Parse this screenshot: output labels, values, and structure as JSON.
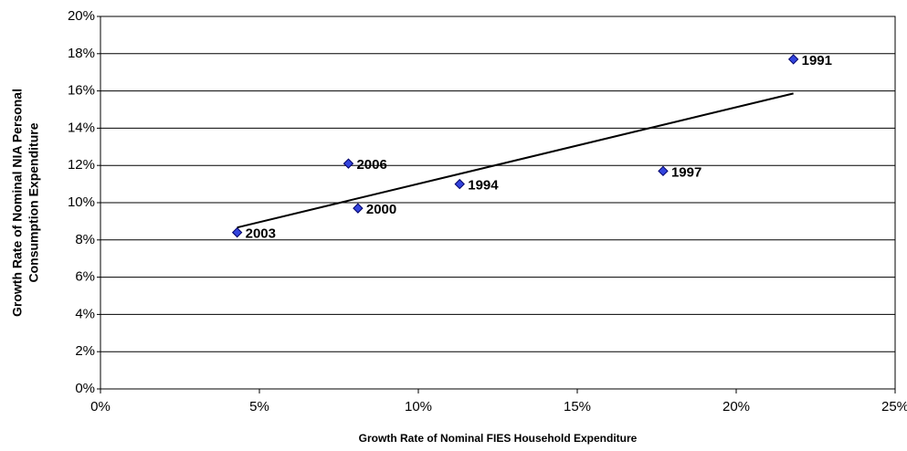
{
  "chart_data": {
    "type": "scatter",
    "xlabel": "Growth Rate of Nominal FIES Household Expenditure",
    "ylabel": [
      "Growth Rate of Nominal NIA Personal",
      "Consumption Expenditure"
    ],
    "series": [
      {
        "color": "#3344dd",
        "x": [
          21.8,
          17.7,
          11.3,
          7.8,
          8.1,
          4.3
        ],
        "values": [
          17.7,
          11.7,
          11.0,
          12.1,
          9.7,
          8.4
        ],
        "labels": [
          "1991",
          "1997",
          "1994",
          "2006",
          "2000",
          "2003"
        ]
      }
    ],
    "trendline": "linear",
    "trendline_color": "#000000",
    "xlim": [
      0,
      25
    ],
    "xticks": [
      {
        "value": 0,
        "label": "0%"
      },
      {
        "value": 5,
        "label": "5%"
      },
      {
        "value": 10,
        "label": "10%"
      },
      {
        "value": 15,
        "label": "15%"
      },
      {
        "value": 20,
        "label": "20%"
      },
      {
        "value": 25,
        "label": "25%"
      }
    ],
    "ylim": [
      0,
      20
    ],
    "yticks": [
      {
        "value": 0,
        "label": "0%"
      },
      {
        "value": 2,
        "label": "2%"
      },
      {
        "value": 4,
        "label": "4%"
      },
      {
        "value": 6,
        "label": "6%"
      },
      {
        "value": 8,
        "label": "8%"
      },
      {
        "value": 10,
        "label": "10%"
      },
      {
        "value": 12,
        "label": "12%"
      },
      {
        "value": 14,
        "label": "14%"
      },
      {
        "value": 16,
        "label": "16%"
      },
      {
        "value": 18,
        "label": "18%"
      },
      {
        "value": 20,
        "label": "20%"
      }
    ],
    "grid": true
  }
}
